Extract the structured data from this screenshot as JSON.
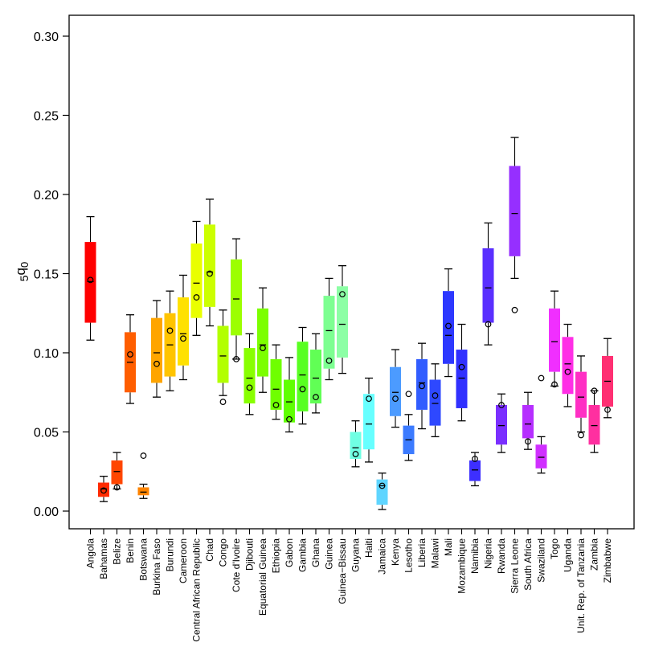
{
  "chart_data": {
    "type": "box",
    "title": "",
    "xlabel": "",
    "ylabel": "5q0",
    "ylabel_main": "q",
    "ylabel_pre": "5",
    "ylabel_sub": "0",
    "ylim": [
      -0.01,
      0.31
    ],
    "yticks": [
      0.0,
      0.05,
      0.1,
      0.15,
      0.2,
      0.25,
      0.3
    ],
    "ytick_labels": [
      "0.00",
      "0.05",
      "0.10",
      "0.15",
      "0.20",
      "0.25",
      "0.30"
    ],
    "grid": false,
    "legend": "none",
    "categories": [
      "Angola",
      "Bahamas",
      "Belize",
      "Benin",
      "Botswana",
      "Burkina Faso",
      "Burundi",
      "Cameroon",
      "Central African Republic",
      "Chad",
      "Congo",
      "Cote d'Ivoire",
      "Djibouti",
      "Equatorial Guinea",
      "Ethiopia",
      "Gabon",
      "Gambia",
      "Ghana",
      "Guinea",
      "Guinea-Bissau",
      "Guyana",
      "Haiti",
      "Jamaica",
      "Kenya",
      "Lesotho",
      "Liberia",
      "Malawi",
      "Mali",
      "Mozambique",
      "Namibia",
      "Nigeria",
      "Rwanda",
      "Sierra Leone",
      "South Africa",
      "Swaziland",
      "Togo",
      "Uganda",
      "Unit. Rep. of Tanzania",
      "Zambia",
      "Zimbabwe"
    ],
    "category_labels": [
      "Angola",
      "Bahamas",
      "Belize",
      "Benin",
      "Botswana",
      "Burkina Faso",
      "Burundi",
      "Cameroon",
      "Central African Republic",
      "Chad",
      "Congo",
      "Cote d'Ivoire",
      "Djibouti",
      "Equatorial Guinea",
      "Ethiopia",
      "Gabon",
      "Gambia",
      "Ghana",
      "Guinea",
      "Guinea−Bissau",
      "Guyana",
      "Haiti",
      "Jamaica",
      "Kenya",
      "Lesotho",
      "Liberia",
      "Malawi",
      "Mali",
      "Mozambique",
      "Namibia",
      "Nigeria",
      "Rwanda",
      "Sierra Leone",
      "South Africa",
      "Swaziland",
      "Togo",
      "Uganda",
      "Unit. Rep. of Tanzania",
      "Zambia",
      "Zimbabwe"
    ],
    "whisker_low": [
      0.108,
      0.006,
      0.014,
      0.068,
      0.008,
      0.072,
      0.076,
      0.083,
      0.111,
      0.117,
      0.073,
      0.096,
      0.061,
      0.075,
      0.058,
      0.05,
      0.055,
      0.062,
      0.083,
      0.087,
      0.028,
      0.031,
      0.001,
      0.053,
      0.032,
      0.052,
      0.047,
      0.085,
      0.057,
      0.016,
      0.105,
      0.037,
      0.147,
      0.039,
      0.024,
      0.079,
      0.066,
      0.05,
      0.037,
      0.059
    ],
    "q1": [
      0.119,
      0.009,
      0.017,
      0.075,
      0.01,
      0.081,
      0.085,
      0.092,
      0.122,
      0.129,
      0.081,
      0.111,
      0.068,
      0.085,
      0.064,
      0.056,
      0.063,
      0.068,
      0.09,
      0.097,
      0.033,
      0.039,
      0.004,
      0.06,
      0.036,
      0.064,
      0.054,
      0.093,
      0.065,
      0.019,
      0.119,
      0.042,
      0.161,
      0.046,
      0.027,
      0.088,
      0.074,
      0.059,
      0.042,
      0.066
    ],
    "median": [
      0.145,
      0.014,
      0.025,
      0.094,
      0.012,
      0.1,
      0.105,
      0.112,
      0.144,
      0.151,
      0.098,
      0.134,
      0.084,
      0.105,
      0.077,
      0.069,
      0.086,
      0.084,
      0.114,
      0.118,
      0.04,
      0.055,
      0.016,
      0.075,
      0.045,
      0.081,
      0.068,
      0.111,
      0.084,
      0.026,
      0.141,
      0.054,
      0.188,
      0.055,
      0.034,
      0.107,
      0.093,
      0.072,
      0.054,
      0.082
    ],
    "q3": [
      0.17,
      0.018,
      0.032,
      0.113,
      0.015,
      0.122,
      0.125,
      0.135,
      0.169,
      0.181,
      0.117,
      0.159,
      0.103,
      0.128,
      0.096,
      0.083,
      0.107,
      0.102,
      0.136,
      0.142,
      0.05,
      0.074,
      0.02,
      0.091,
      0.054,
      0.096,
      0.083,
      0.139,
      0.102,
      0.032,
      0.166,
      0.067,
      0.218,
      0.067,
      0.042,
      0.128,
      0.11,
      0.088,
      0.067,
      0.098
    ],
    "whisker_high": [
      0.186,
      0.022,
      0.037,
      0.124,
      0.017,
      0.133,
      0.139,
      0.149,
      0.183,
      0.197,
      0.127,
      0.172,
      0.112,
      0.141,
      0.105,
      0.097,
      0.116,
      0.112,
      0.147,
      0.155,
      0.057,
      0.084,
      0.024,
      0.102,
      0.061,
      0.106,
      0.093,
      0.153,
      0.118,
      0.037,
      0.182,
      0.074,
      0.236,
      0.075,
      0.047,
      0.139,
      0.118,
      0.098,
      0.076,
      0.109
    ],
    "point": [
      0.146,
      0.013,
      0.015,
      0.099,
      0.035,
      0.093,
      0.114,
      0.109,
      0.135,
      0.15,
      0.069,
      0.096,
      0.078,
      0.103,
      0.067,
      0.058,
      0.077,
      0.072,
      0.095,
      0.137,
      0.036,
      0.071,
      0.016,
      0.071,
      0.074,
      0.079,
      0.073,
      0.117,
      0.091,
      0.033,
      0.118,
      0.067,
      0.127,
      0.044,
      0.084,
      0.08,
      0.088,
      0.048,
      0.076,
      0.064
    ],
    "colors": [
      "#FF0000",
      "#FF2B00",
      "#FF4600",
      "#FF5E00",
      "#FF8400",
      "#FFA500",
      "#FFC400",
      "#FFE100",
      "#E9FF00",
      "#CCFF00",
      "#B3FF00",
      "#9CFF00",
      "#88FF00",
      "#7CFF00",
      "#6FFF00",
      "#5FFF00",
      "#58FF21",
      "#61FF55",
      "#7DFF91",
      "#8CFFA5",
      "#70FFE3",
      "#67FFFF",
      "#5FD5FF",
      "#4C9BFF",
      "#3C7BFF",
      "#315DFF",
      "#2E48FF",
      "#2D38FF",
      "#3131FF",
      "#3D2FFF",
      "#5A2FFF",
      "#7A2FFF",
      "#962FFF",
      "#B62FFF",
      "#D02FFF",
      "#F02FFF",
      "#FF2FE6",
      "#FF2FC4",
      "#FF2FA0",
      "#FF2F72"
    ]
  }
}
